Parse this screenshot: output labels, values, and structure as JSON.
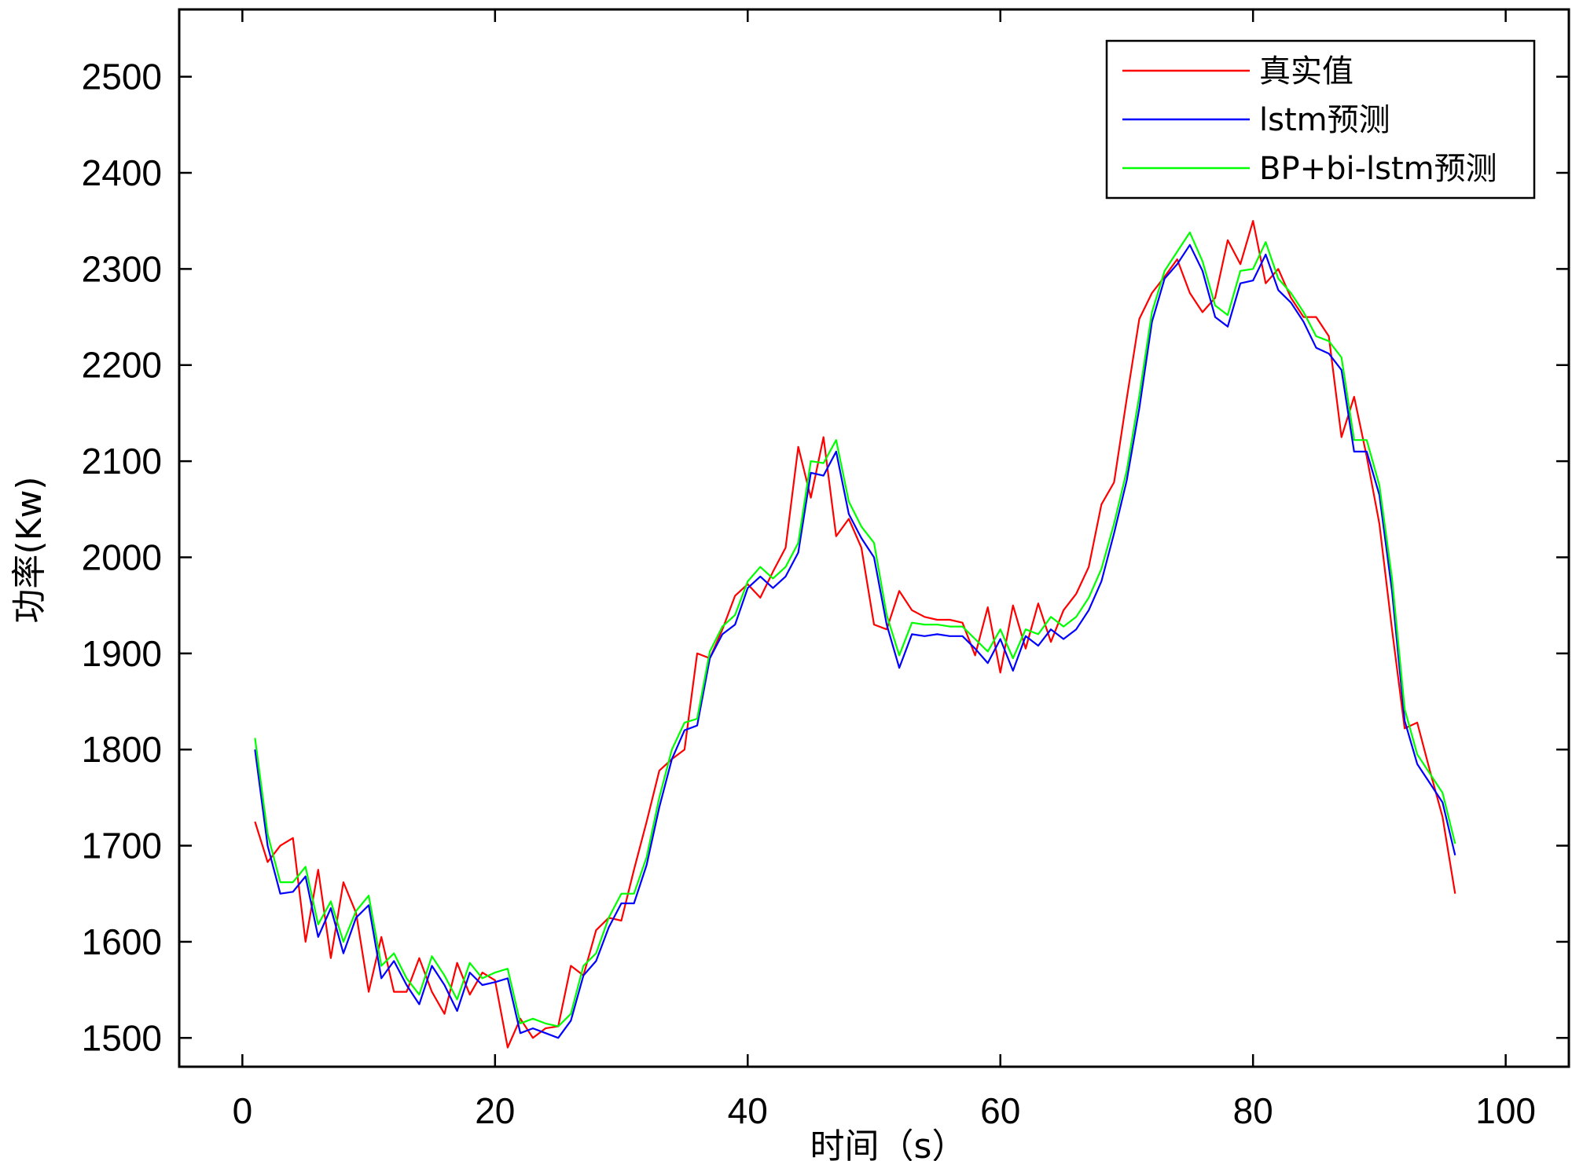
{
  "chart_data": {
    "type": "line",
    "xlabel": "时间（s）",
    "ylabel": "功率(Kw)",
    "xlim": [
      -5,
      105
    ],
    "ylim": [
      1470,
      2570
    ],
    "xticks": [
      0,
      20,
      40,
      60,
      80,
      100
    ],
    "yticks": [
      1500,
      1600,
      1700,
      1800,
      1900,
      2000,
      2100,
      2200,
      2300,
      2400,
      2500
    ],
    "grid": false,
    "legend_position": "top-right",
    "x": [
      1,
      2,
      3,
      4,
      5,
      6,
      7,
      8,
      9,
      10,
      11,
      12,
      13,
      14,
      15,
      16,
      17,
      18,
      19,
      20,
      21,
      22,
      23,
      24,
      25,
      26,
      27,
      28,
      29,
      30,
      31,
      32,
      33,
      34,
      35,
      36,
      37,
      38,
      39,
      40,
      41,
      42,
      43,
      44,
      45,
      46,
      47,
      48,
      49,
      50,
      51,
      52,
      53,
      54,
      55,
      56,
      57,
      58,
      59,
      60,
      61,
      62,
      63,
      64,
      65,
      66,
      67,
      68,
      69,
      70,
      71,
      72,
      73,
      74,
      75,
      76,
      77,
      78,
      79,
      80,
      81,
      82,
      83,
      84,
      85,
      86,
      87,
      88,
      89,
      90,
      91,
      92,
      93,
      94,
      95,
      96
    ],
    "series": [
      {
        "name": "真实值",
        "color": "#ff0000",
        "values": [
          1725,
          1683,
          1700,
          1708,
          1600,
          1675,
          1583,
          1662,
          1630,
          1548,
          1605,
          1548,
          1548,
          1583,
          1548,
          1525,
          1578,
          1545,
          1568,
          1560,
          1490,
          1520,
          1500,
          1510,
          1512,
          1575,
          1565,
          1612,
          1625,
          1622,
          1675,
          1725,
          1778,
          1790,
          1800,
          1900,
          1895,
          1925,
          1960,
          1972,
          1958,
          1985,
          2010,
          2115,
          2062,
          2125,
          2022,
          2040,
          2010,
          1930,
          1925,
          1965,
          1945,
          1938,
          1935,
          1935,
          1932,
          1898,
          1948,
          1880,
          1950,
          1905,
          1952,
          1912,
          1945,
          1962,
          1990,
          2055,
          2078,
          2165,
          2248,
          2275,
          2292,
          2310,
          2275,
          2255,
          2270,
          2330,
          2305,
          2350,
          2285,
          2300,
          2270,
          2250,
          2250,
          2230,
          2125,
          2167,
          2105,
          2035,
          1925,
          1822,
          1828,
          1778,
          1730,
          1650
        ]
      },
      {
        "name": "lstm预测",
        "color": "#0000ff",
        "values": [
          1800,
          1700,
          1650,
          1652,
          1668,
          1605,
          1635,
          1588,
          1625,
          1638,
          1562,
          1580,
          1555,
          1535,
          1575,
          1555,
          1528,
          1568,
          1555,
          1558,
          1562,
          1505,
          1510,
          1505,
          1500,
          1518,
          1565,
          1580,
          1615,
          1640,
          1640,
          1680,
          1740,
          1790,
          1820,
          1825,
          1895,
          1920,
          1930,
          1968,
          1980,
          1968,
          1980,
          2005,
          2088,
          2085,
          2110,
          2045,
          2020,
          2000,
          1930,
          1885,
          1920,
          1918,
          1920,
          1918,
          1918,
          1905,
          1890,
          1915,
          1882,
          1918,
          1908,
          1925,
          1915,
          1925,
          1945,
          1975,
          2025,
          2080,
          2155,
          2245,
          2290,
          2305,
          2325,
          2298,
          2250,
          2240,
          2285,
          2288,
          2315,
          2278,
          2265,
          2245,
          2218,
          2212,
          2195,
          2110,
          2110,
          2065,
          1965,
          1830,
          1785,
          1765,
          1745,
          1690
        ]
      },
      {
        "name": "BP+bi-lstm预测",
        "color": "#00ff00",
        "values": [
          1812,
          1712,
          1662,
          1662,
          1678,
          1618,
          1642,
          1600,
          1632,
          1648,
          1575,
          1588,
          1562,
          1545,
          1585,
          1565,
          1540,
          1578,
          1562,
          1568,
          1572,
          1515,
          1520,
          1515,
          1512,
          1525,
          1575,
          1588,
          1625,
          1650,
          1650,
          1688,
          1750,
          1800,
          1828,
          1832,
          1902,
          1928,
          1940,
          1975,
          1990,
          1978,
          1990,
          2015,
          2100,
          2098,
          2122,
          2058,
          2032,
          2015,
          1940,
          1898,
          1932,
          1930,
          1930,
          1928,
          1928,
          1915,
          1902,
          1925,
          1895,
          1925,
          1920,
          1938,
          1928,
          1938,
          1958,
          1988,
          2035,
          2090,
          2168,
          2255,
          2298,
          2318,
          2338,
          2308,
          2262,
          2252,
          2298,
          2300,
          2328,
          2290,
          2275,
          2255,
          2230,
          2225,
          2208,
          2122,
          2122,
          2075,
          1978,
          1842,
          1795,
          1775,
          1755,
          1702
        ]
      }
    ]
  }
}
